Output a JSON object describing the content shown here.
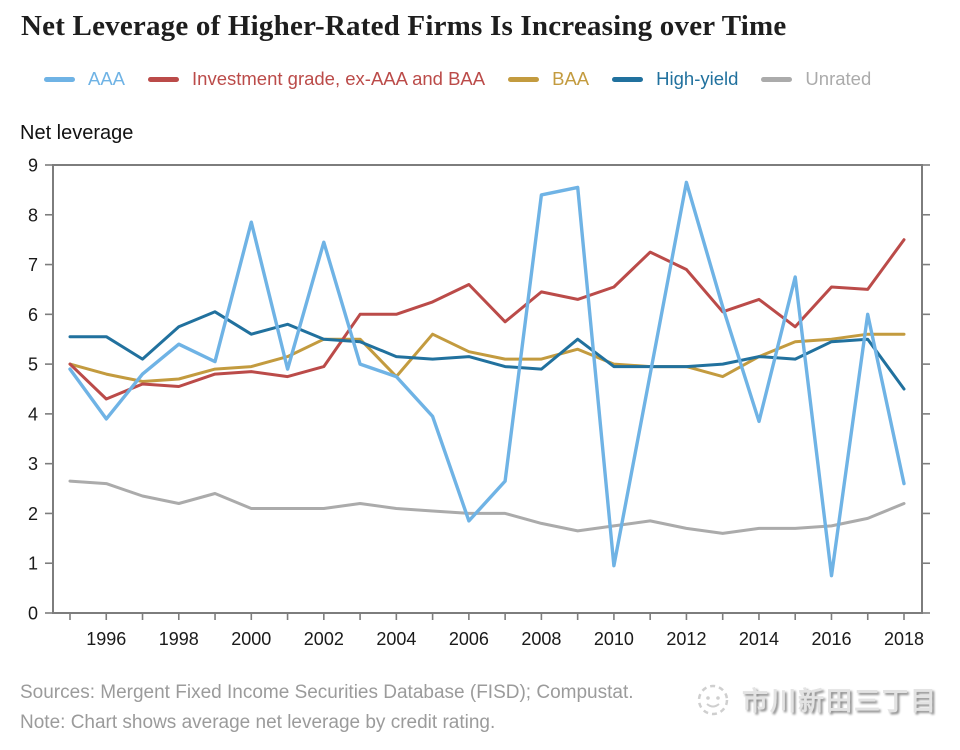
{
  "page": {
    "title": "Net Leverage of Higher-Rated Firms Is Increasing over Time",
    "axis_title": "Net leverage",
    "sources_line": "Sources: Mergent Fixed Income Securities Database (FISD); Compustat.",
    "note_line": "Note: Chart shows average net leverage by credit rating.",
    "watermark_text": "市川新田三丁目"
  },
  "colors": {
    "aaa": "#6fb3e5",
    "investment_grade": "#bb4b49",
    "baa": "#c39b3f",
    "high_yield": "#21719e",
    "unrated": "#ababab",
    "axis": "#7d7d7d",
    "tick_label": "#1a1a1a",
    "footer_text": "#9b9b9b"
  },
  "legend": [
    {
      "label": "AAA",
      "color": "#6fb3e5"
    },
    {
      "label": "Investment grade, ex-AAA and BAA",
      "color": "#bb4b49"
    },
    {
      "label": "BAA",
      "color": "#c39b3f"
    },
    {
      "label": "High-yield",
      "color": "#21719e"
    },
    {
      "label": "Unrated",
      "color": "#ababab"
    }
  ],
  "chart_data": {
    "type": "line",
    "title": "Net Leverage of Higher-Rated Firms Is Increasing over Time",
    "xlabel": "",
    "ylabel": "Net leverage",
    "ylim": [
      0,
      9
    ],
    "grid": false,
    "legend_position": "top",
    "x": [
      1995,
      1996,
      1997,
      1998,
      1999,
      2000,
      2001,
      2002,
      2003,
      2004,
      2005,
      2006,
      2007,
      2008,
      2009,
      2010,
      2011,
      2012,
      2013,
      2014,
      2015,
      2016,
      2017,
      2018
    ],
    "x_tick_labels": [
      1996,
      1998,
      2000,
      2002,
      2004,
      2006,
      2008,
      2010,
      2012,
      2014,
      2016,
      2018
    ],
    "y_ticks": [
      0,
      1,
      2,
      3,
      4,
      5,
      6,
      7,
      8,
      9
    ],
    "series": [
      {
        "name": "AAA",
        "color": "#6fb3e5",
        "values": [
          4.9,
          3.9,
          4.8,
          5.4,
          5.05,
          7.85,
          4.9,
          7.45,
          5.0,
          4.75,
          3.95,
          1.85,
          2.65,
          8.4,
          8.55,
          0.95,
          4.8,
          8.65,
          6.15,
          3.85,
          6.75,
          0.75,
          6.0,
          2.6
        ]
      },
      {
        "name": "Investment grade, ex-AAA and BAA",
        "color": "#bb4b49",
        "values": [
          5.0,
          4.3,
          4.6,
          4.55,
          4.8,
          4.85,
          4.75,
          4.95,
          6.0,
          6.0,
          6.25,
          6.6,
          5.85,
          6.45,
          6.3,
          6.55,
          7.25,
          6.9,
          6.05,
          6.3,
          5.75,
          6.55,
          6.5,
          7.5
        ]
      },
      {
        "name": "BAA",
        "color": "#c39b3f",
        "values": [
          5.0,
          4.8,
          4.65,
          4.7,
          4.9,
          4.95,
          5.15,
          5.5,
          5.5,
          4.75,
          5.6,
          5.25,
          5.1,
          5.1,
          5.3,
          5.0,
          4.95,
          4.95,
          4.75,
          5.15,
          5.45,
          5.5,
          5.6,
          5.6
        ]
      },
      {
        "name": "High-yield",
        "color": "#21719e",
        "values": [
          5.55,
          5.55,
          5.1,
          5.75,
          6.05,
          5.6,
          5.8,
          5.5,
          5.45,
          5.15,
          5.1,
          5.15,
          4.95,
          4.9,
          5.5,
          4.95,
          4.95,
          4.95,
          5.0,
          5.15,
          5.1,
          5.45,
          5.5,
          4.5
        ]
      },
      {
        "name": "Unrated",
        "color": "#ababab",
        "values": [
          2.65,
          2.6,
          2.35,
          2.2,
          2.4,
          2.1,
          2.1,
          2.1,
          2.2,
          2.1,
          2.05,
          2.0,
          2.0,
          1.8,
          1.65,
          1.75,
          1.85,
          1.7,
          1.6,
          1.7,
          1.7,
          1.75,
          1.9,
          2.2
        ]
      }
    ]
  }
}
